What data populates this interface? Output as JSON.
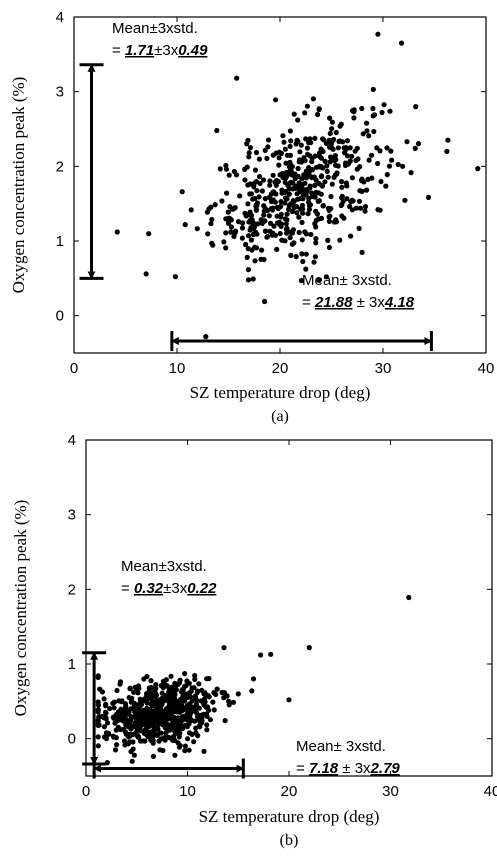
{
  "chart_data": [
    {
      "type": "scatter",
      "panel_label": "(a)",
      "xlabel": "SZ temperature drop (deg)",
      "ylabel": "Oxygen concentration peak (%)",
      "xlim": [
        0,
        40
      ],
      "ylim": [
        -0.5,
        4
      ],
      "xticks": [
        0,
        10,
        20,
        30,
        40
      ],
      "yticks": [
        0,
        1,
        2,
        3,
        4
      ],
      "grid": false,
      "cluster": {
        "x_mean": 21.88,
        "x_std": 4.18,
        "y_mean": 1.71,
        "y_std": 0.49,
        "n_points": 520
      },
      "outliers": [
        {
          "x": 4.2,
          "y": 1.12
        },
        {
          "x": 7.0,
          "y": 0.56
        },
        {
          "x": 12.8,
          "y": -0.28
        },
        {
          "x": 18.5,
          "y": 0.19
        },
        {
          "x": 24.5,
          "y": 0.52
        },
        {
          "x": 36.3,
          "y": 2.35
        },
        {
          "x": 36.2,
          "y": 2.2
        },
        {
          "x": 39.2,
          "y": 1.97
        },
        {
          "x": 29.5,
          "y": 3.77
        },
        {
          "x": 31.8,
          "y": 3.65
        },
        {
          "x": 15.8,
          "y": 3.18
        },
        {
          "x": 10.5,
          "y": 1.66
        },
        {
          "x": 10.8,
          "y": 1.22
        },
        {
          "x": 31.9,
          "y": 2.0
        }
      ],
      "annotations": {
        "y_label_prefix": "Mean±3xstd.",
        "y_eq": "= ",
        "y_mean_text": "1.71",
        "y_mid": "±3x",
        "y_std_text": "0.49",
        "y_arrow": [
          0.5,
          3.36
        ],
        "x_label_prefix": "Mean± 3xstd.",
        "x_eq": "= ",
        "x_mean_text": "21.88",
        "x_mid": " ± 3x",
        "x_std_text": "4.18",
        "x_arrow": [
          9.5,
          34.7
        ]
      }
    },
    {
      "type": "scatter",
      "panel_label": "(b)",
      "xlabel": "SZ temperature drop (deg)",
      "ylabel": "Oxygen concentration peak (%)",
      "xlim": [
        0,
        40
      ],
      "ylim": [
        -0.5,
        4
      ],
      "xticks": [
        0,
        10,
        20,
        30,
        40
      ],
      "yticks": [
        0,
        1,
        2,
        3,
        4
      ],
      "grid": false,
      "cluster": {
        "x_mean": 7.18,
        "x_std": 2.79,
        "y_mean": 0.32,
        "y_std": 0.22,
        "n_points": 650
      },
      "outliers": [
        {
          "x": 31.8,
          "y": 1.89
        },
        {
          "x": 22.0,
          "y": 1.22
        },
        {
          "x": 20.0,
          "y": 0.52
        },
        {
          "x": 17.2,
          "y": 1.12
        },
        {
          "x": 18.2,
          "y": 1.13
        },
        {
          "x": 16.5,
          "y": 0.8
        },
        {
          "x": 15.0,
          "y": 0.6
        },
        {
          "x": 13.6,
          "y": 1.22
        }
      ],
      "annotations": {
        "y_label_prefix": "Mean±3xstd.",
        "y_eq": "= ",
        "y_mean_text": "0.32",
        "y_mid": "±3x",
        "y_std_text": "0.22",
        "y_arrow": [
          -0.34,
          1.15
        ],
        "x_label_prefix": "Mean± 3xstd.",
        "x_eq": "= ",
        "x_mean_text": "7.18",
        "x_mid": " ± 3x",
        "x_std_text": "2.79",
        "x_arrow": [
          0.8,
          15.5
        ]
      }
    }
  ]
}
